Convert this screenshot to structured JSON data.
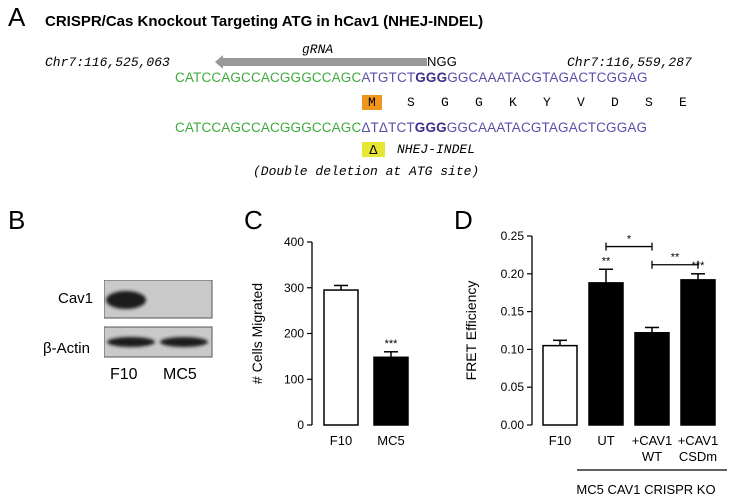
{
  "panel_a": {
    "letter": "A",
    "title": "CRISPR/Cas Knockout Targeting ATG in hCav1 (NHEJ-INDEL)",
    "coord_left": "Chr7:116,525,063",
    "coord_right": "Chr7:116,559,287",
    "grna_label": "gRNA",
    "ngg_label": "NGG",
    "seq1_green": "CATCCAGCCACGGGCCAGC",
    "seq1_purple_a": "ATGTCT",
    "seq1_bold": "GGG",
    "seq1_purple_b": "GGCAAATACGTAGACTCGGAG",
    "aa_first": "M",
    "aa_rest": [
      "S",
      "G",
      "G",
      "K",
      "Y",
      "V",
      "D",
      "S",
      "E"
    ],
    "seq2_green": "CATCCAGCCACGGGCCAGC",
    "seq2_purple_a": "ΔTΔTCT",
    "seq2_bold": "GGG",
    "seq2_purple_b": "GGCAAATACGTAGACTCGGAG",
    "delta_symbol": "Δ",
    "indel_label": "NHEJ-INDEL",
    "note": "(Double deletion at ATG site)"
  },
  "panel_b": {
    "letter": "B",
    "rows": [
      "Cav1",
      "β-Actin"
    ],
    "lanes": [
      "F10",
      "MC5"
    ]
  },
  "panel_c": {
    "letter": "C",
    "chart_data": {
      "type": "bar",
      "categories": [
        "F10",
        "MC5"
      ],
      "values": [
        295,
        148
      ],
      "errors": [
        10,
        12
      ],
      "fills": [
        "#ffffff",
        "#000000"
      ],
      "significance": [
        "",
        "***"
      ],
      "ylabel": "# Cells Migrated",
      "ylim": [
        0,
        400
      ],
      "yticks": [
        0,
        100,
        200,
        300,
        400
      ]
    }
  },
  "panel_d": {
    "letter": "D",
    "chart_data": {
      "type": "bar",
      "categories": [
        "F10",
        "UT",
        "+CAV1\nWT",
        "+CAV1\nCSDm"
      ],
      "values": [
        0.105,
        0.188,
        0.122,
        0.192
      ],
      "errors": [
        0.007,
        0.018,
        0.007,
        0.008
      ],
      "fills": [
        "#ffffff",
        "#000000",
        "#000000",
        "#000000"
      ],
      "significance": [
        "",
        "**",
        "",
        "***"
      ],
      "brackets": [
        {
          "from": 1,
          "to": 2,
          "label": "*"
        },
        {
          "from": 2,
          "to": 3,
          "label": "**"
        }
      ],
      "ylabel": "FRET Efficiency",
      "ylim": [
        0,
        0.25
      ],
      "yticks": [
        "0.00",
        "0.05",
        "0.10",
        "0.15",
        "0.20",
        "0.25"
      ],
      "group_label": "MC5 CAV1 CRISPR KO"
    }
  }
}
